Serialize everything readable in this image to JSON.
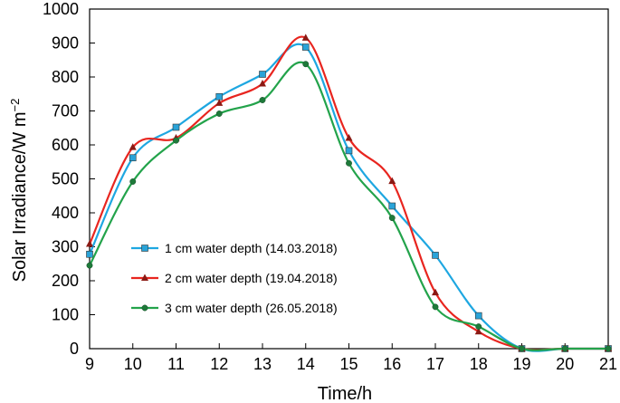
{
  "chart_data": {
    "type": "line",
    "title": "",
    "xlabel": "Time/h",
    "ylabel": "Solar Irradiance/W m",
    "ylabel_exp": "−2",
    "xlim": [
      9,
      21
    ],
    "ylim": [
      0,
      1000
    ],
    "x_ticks": [
      9,
      10,
      11,
      12,
      13,
      14,
      15,
      16,
      17,
      18,
      19,
      20,
      21
    ],
    "y_ticks": [
      0,
      100,
      200,
      300,
      400,
      500,
      600,
      700,
      800,
      900,
      1000
    ],
    "legend_position": "lower-left",
    "grid": false,
    "series": [
      {
        "name": "1 cm water depth (14.03.2018)",
        "color": "#1ea7e1",
        "marker": "square",
        "marker_color": "#29a3d8",
        "x": [
          9,
          10,
          11,
          12,
          13,
          14,
          15,
          16,
          17,
          18,
          19,
          20,
          21
        ],
        "values": [
          278,
          562,
          652,
          742,
          808,
          888,
          583,
          420,
          275,
          97,
          0,
          0,
          0
        ]
      },
      {
        "name": "2 cm water depth (19.04.2018)",
        "color": "#e8251f",
        "marker": "triangle",
        "marker_color": "#8b1a14",
        "x": [
          9,
          10,
          11,
          12,
          13,
          14,
          15,
          16,
          17,
          18,
          19,
          20,
          21
        ],
        "values": [
          308,
          593,
          620,
          723,
          780,
          915,
          620,
          493,
          165,
          50,
          0,
          0,
          0
        ]
      },
      {
        "name": "3 cm water depth (26.05.2018)",
        "color": "#23a34b",
        "marker": "circle",
        "marker_color": "#1e7a3a",
        "x": [
          9,
          10,
          11,
          12,
          13,
          14,
          15,
          16,
          17,
          18,
          19,
          20,
          21
        ],
        "values": [
          245,
          492,
          613,
          692,
          732,
          838,
          546,
          385,
          123,
          65,
          0,
          0,
          0
        ]
      }
    ]
  }
}
